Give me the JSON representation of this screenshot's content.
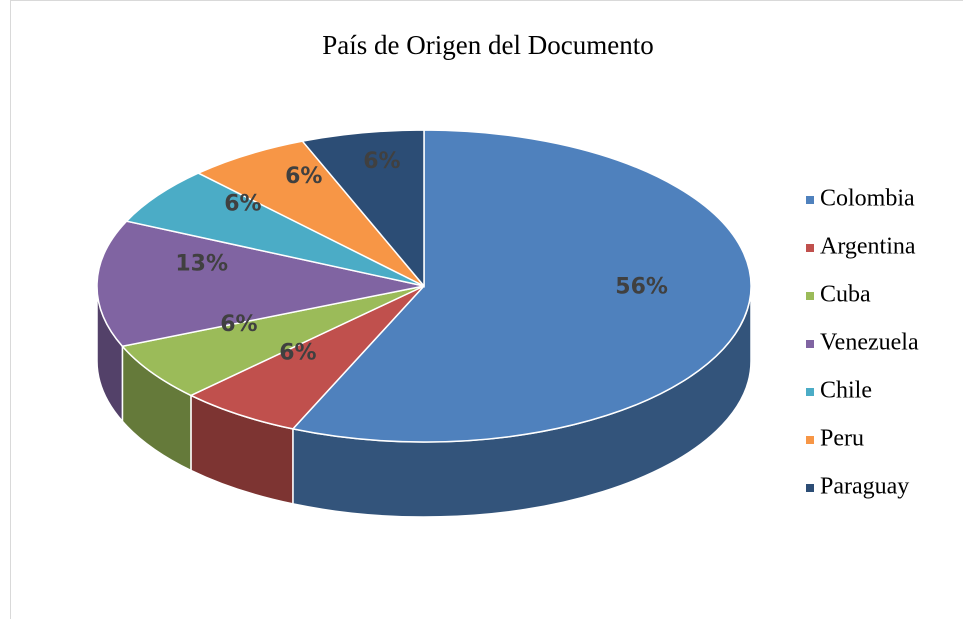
{
  "chart_data": {
    "type": "pie",
    "title": "País de Origen del Documento",
    "categories": [
      "Colombia",
      "Argentina",
      "Cuba",
      "Venezuela",
      "Chile",
      "Peru",
      "Paraguay"
    ],
    "values": [
      56,
      6,
      6,
      13,
      6,
      6,
      6
    ],
    "value_labels": [
      "56%",
      "6%",
      "6%",
      "13%",
      "6%",
      "6%",
      "6%"
    ],
    "colors": [
      "#4f81bd",
      "#c0504d",
      "#9bbb59",
      "#8064a2",
      "#4bacc6",
      "#f79646",
      "#2c4d75"
    ],
    "legend": "right"
  }
}
